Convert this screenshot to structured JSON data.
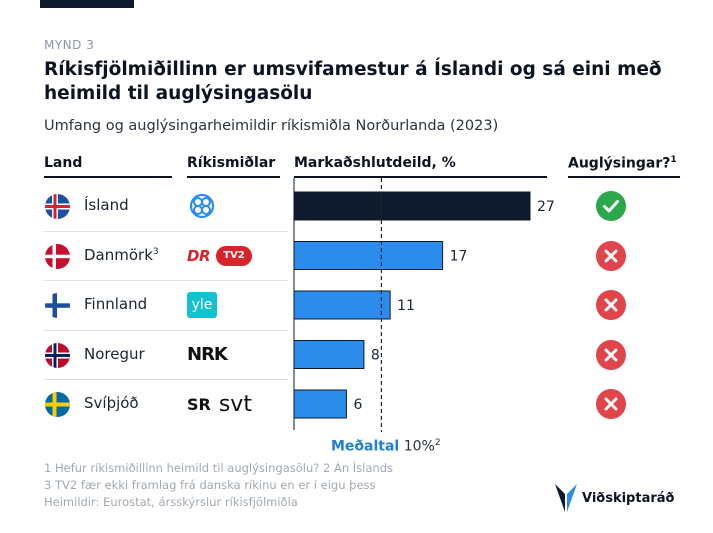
{
  "figure_label": "MYND 3",
  "title": "Ríkisfjölmiðillinn er umsvifamestur á Íslandi og sá eini með heimild til auglýsingasölu",
  "subtitle": "Umfang og auglýsingarheimildir ríkismiðla Norðurlanda (2023)",
  "headers": {
    "land": "Land",
    "media": "Ríkismiðlar",
    "share": "Markaðshlutdeild, %",
    "ads": "Auglýsingar?",
    "ads_note": "1"
  },
  "rows": [
    {
      "country": "Ísland",
      "note": "",
      "value": 27,
      "value_label": "27",
      "ads": true,
      "flag": "iceland-flag",
      "logo": "ruv-logo-icon",
      "bar_color": "#0f1b2d"
    },
    {
      "country": "Danmörk",
      "note": "3",
      "value": 17,
      "value_label": "17",
      "ads": false,
      "flag": "denmark-flag",
      "logo": "dr-tv2-logo-icon",
      "bar_color": "#2c8cec",
      "logo_text": [
        "DR",
        "TV2"
      ]
    },
    {
      "country": "Finnland",
      "note": "",
      "value": 11,
      "value_label": "11",
      "ads": false,
      "flag": "finland-flag",
      "logo": "yle-logo-icon",
      "bar_color": "#2c8cec",
      "logo_text": [
        "yle"
      ]
    },
    {
      "country": "Noregur",
      "note": "",
      "value": 8,
      "value_label": "8",
      "ads": false,
      "flag": "norway-flag",
      "logo": "nrk-logo-icon",
      "bar_color": "#2c8cec",
      "logo_text": [
        "NRK"
      ]
    },
    {
      "country": "Svíþjóð",
      "note": "",
      "value": 6,
      "value_label": "6",
      "ads": false,
      "flag": "sweden-flag",
      "logo": "sr-svt-logo-icon",
      "bar_color": "#2c8cec",
      "logo_text": [
        "SR",
        "svt"
      ]
    }
  ],
  "average": {
    "word": "Meðaltal",
    "value": 10,
    "value_label": "10%",
    "note": "2"
  },
  "footnotes": [
    "1 Hefur ríkismiðillinn heimild til auglýsingasölu? 2 Án Íslands",
    "3 TV2 fær ekki framlag frá danska ríkinu en er í eigu þess",
    "Heimildir: Eurostat, ársskýrslur ríkisfjölmiðla"
  ],
  "brand": "Viðskiptaráð",
  "colors": {
    "dark": "#0f1b2d",
    "blue": "#2c8cec",
    "green": "#2aa84a",
    "red": "#e0454c",
    "accent": "#1f7fd1"
  },
  "chart_data": {
    "type": "bar",
    "orientation": "horizontal",
    "categories": [
      "Ísland",
      "Danmörk",
      "Finnland",
      "Noregur",
      "Svíþjóð"
    ],
    "values": [
      27,
      17,
      11,
      8,
      6
    ],
    "xlabel": "Markaðshlutdeild, %",
    "xlim": [
      0,
      27
    ],
    "reference_line": {
      "label": "Meðaltal",
      "value": 10
    },
    "ads_allowed": [
      true,
      false,
      false,
      false,
      false
    ]
  }
}
